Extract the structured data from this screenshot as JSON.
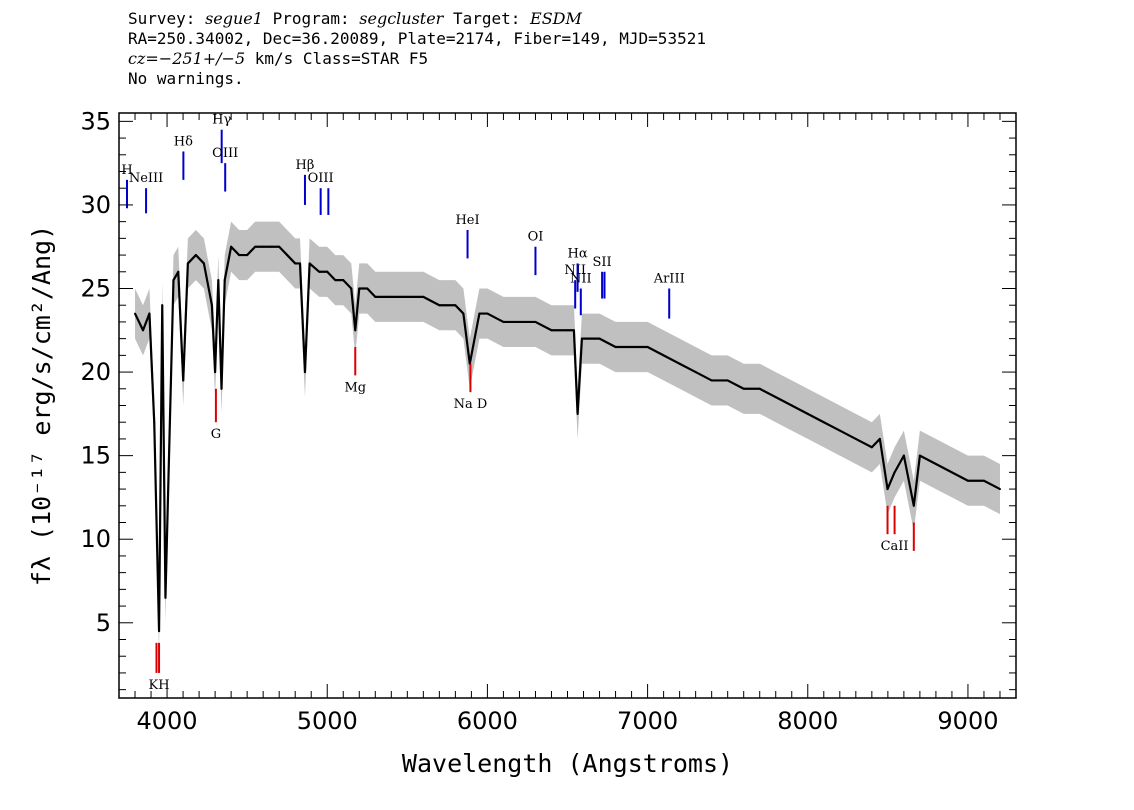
{
  "header": {
    "line1": {
      "survey_label": "Survey: ",
      "survey": "segue1",
      "program_label": " Program: ",
      "program": "segcluster",
      "target_label": " Target: ",
      "target": "ESDM"
    },
    "line2": "RA=250.34002, Dec=36.20089, Plate=2174, Fiber=149, MJD=53521",
    "line3": {
      "cz_label": "cz=",
      "cz": "−251+/−5",
      "rest": " km/s Class=STAR F5"
    },
    "line4": "No warnings."
  },
  "chart_data": {
    "type": "line",
    "title": "",
    "xlabel": "Wavelength (Angstroms)",
    "ylabel": "fλ (10⁻¹⁷ erg/s/cm²/Ang)",
    "xlim": [
      3700,
      9300
    ],
    "ylim": [
      0.5,
      35.5
    ],
    "x_ticks": [
      4000,
      5000,
      6000,
      7000,
      8000,
      9000
    ],
    "y_ticks": [
      5,
      10,
      15,
      20,
      25,
      30,
      35
    ],
    "grid": false,
    "series": [
      {
        "name": "",
        "color": "#000000",
        "x": [
          3800,
          3850,
          3890,
          3920,
          3950,
          3970,
          3990,
          4040,
          4070,
          4101,
          4130,
          4180,
          4230,
          4280,
          4300,
          4320,
          4340,
          4360,
          4400,
          4450,
          4500,
          4550,
          4600,
          4650,
          4700,
          4750,
          4800,
          4830,
          4861,
          4890,
          4950,
          5000,
          5050,
          5100,
          5150,
          5175,
          5200,
          5250,
          5300,
          5400,
          5500,
          5600,
          5700,
          5800,
          5850,
          5890,
          5950,
          6000,
          6100,
          6200,
          6300,
          6400,
          6500,
          6540,
          6563,
          6590,
          6650,
          6700,
          6800,
          6900,
          7000,
          7100,
          7200,
          7300,
          7400,
          7500,
          7600,
          7700,
          7800,
          7900,
          8000,
          8100,
          8200,
          8300,
          8400,
          8450,
          8498,
          8542,
          8600,
          8662,
          8700,
          8800,
          8900,
          9000,
          9100,
          9200
        ],
        "y": [
          23.5,
          22.5,
          23.5,
          17,
          4.5,
          24,
          6.5,
          25.5,
          26,
          19.5,
          26.5,
          27,
          26.5,
          24,
          20,
          25.5,
          19,
          25.5,
          27.5,
          27,
          27,
          27.5,
          27.5,
          27.5,
          27.5,
          27,
          26.5,
          26.5,
          20,
          26.5,
          26,
          26,
          25.5,
          25.5,
          25,
          22.5,
          25,
          25,
          24.5,
          24.5,
          24.5,
          24.5,
          24,
          24,
          23.5,
          20.5,
          23.5,
          23.5,
          23,
          23,
          23,
          22.5,
          22.5,
          22.5,
          17.5,
          22,
          22,
          22,
          21.5,
          21.5,
          21.5,
          21,
          20.5,
          20,
          19.5,
          19.5,
          19,
          19,
          18.5,
          18,
          17.5,
          17,
          16.5,
          16,
          15.5,
          16,
          13,
          14,
          15,
          12,
          15,
          14.5,
          14,
          13.5,
          13.5,
          13
        ]
      }
    ],
    "error_band": {
      "name": "",
      "color": "#c0c0c0",
      "halfwidth": 1.5
    },
    "emission_lines": [
      {
        "label": "H",
        "x": 3750,
        "top": 31.5,
        "bottom": 29.8
      },
      {
        "label": "NeIII",
        "x": 3869,
        "top": 31.0,
        "bottom": 29.5
      },
      {
        "label": "Hδ",
        "x": 4102,
        "top": 33.2,
        "bottom": 31.5
      },
      {
        "label": "Hγ",
        "x": 4341,
        "top": 34.5,
        "bottom": 32.5
      },
      {
        "label": "OIII",
        "x": 4363,
        "top": 32.5,
        "bottom": 30.8
      },
      {
        "label": "Hβ",
        "x": 4861,
        "top": 31.8,
        "bottom": 30.0
      },
      {
        "label": "OIII",
        "x": 4959,
        "top": 31.0,
        "bottom": 29.4
      },
      {
        "label": "",
        "x": 5007,
        "top": 31.0,
        "bottom": 29.4
      },
      {
        "label": "HeI",
        "x": 5876,
        "top": 28.5,
        "bottom": 26.8
      },
      {
        "label": "OI",
        "x": 6300,
        "top": 27.5,
        "bottom": 25.8
      },
      {
        "label": "NII",
        "x": 6548,
        "top": 25.5,
        "bottom": 23.8
      },
      {
        "label": "Hα",
        "x": 6563,
        "top": 26.5,
        "bottom": 24.8
      },
      {
        "label": "NII",
        "x": 6583,
        "top": 25.0,
        "bottom": 23.4
      },
      {
        "label": "SII",
        "x": 6716,
        "top": 26.0,
        "bottom": 24.4
      },
      {
        "label": "",
        "x": 6731,
        "top": 26.0,
        "bottom": 24.4
      },
      {
        "label": "ArIII",
        "x": 7135,
        "top": 25.0,
        "bottom": 23.2
      }
    ],
    "absorption_lines": [
      {
        "label": "",
        "x": 3934,
        "top": 3.8,
        "bottom": 2.0
      },
      {
        "label": "KH",
        "x": 3950,
        "top": 3.8,
        "bottom": 2.0
      },
      {
        "label": "G",
        "x": 4305,
        "top": 19.0,
        "bottom": 17.0
      },
      {
        "label": "Mg",
        "x": 5175,
        "top": 21.5,
        "bottom": 19.8
      },
      {
        "label": "Na D",
        "x": 5894,
        "top": 20.5,
        "bottom": 18.8
      },
      {
        "label": "",
        "x": 8498,
        "top": 12.0,
        "bottom": 10.3
      },
      {
        "label": "CaII",
        "x": 8542,
        "top": 12.0,
        "bottom": 10.3
      },
      {
        "label": "",
        "x": 8662,
        "top": 11.0,
        "bottom": 9.3
      }
    ],
    "emission_color": "#0000cc",
    "absorption_color": "#dd0000"
  }
}
